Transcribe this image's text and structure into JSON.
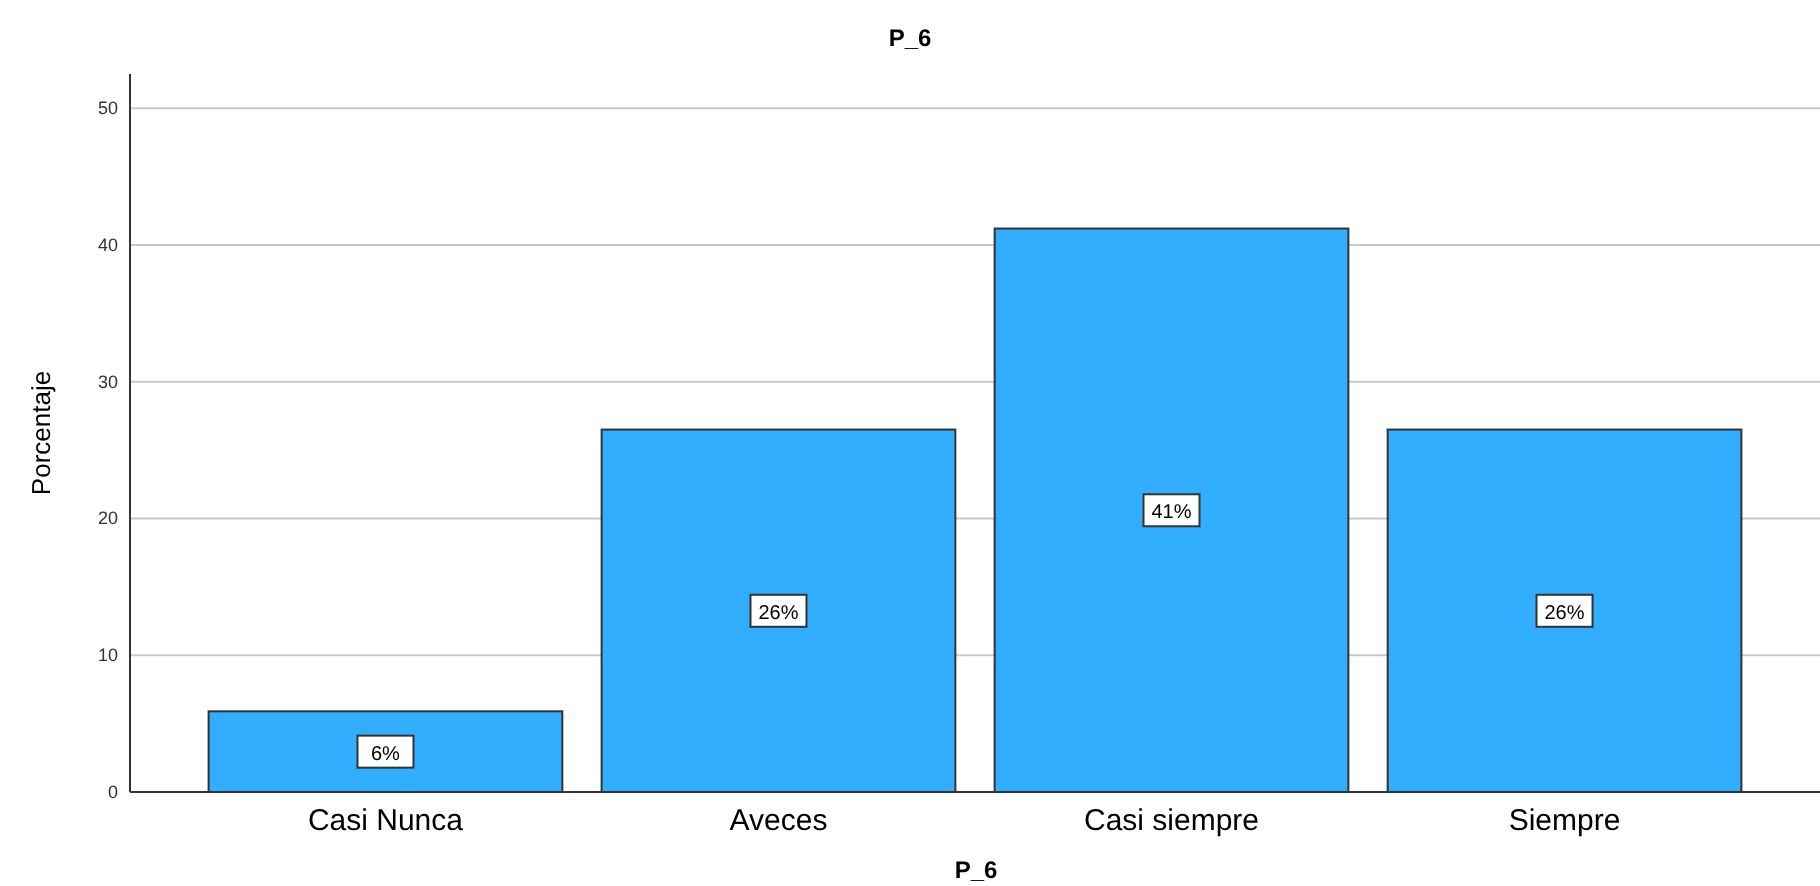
{
  "chart_data": {
    "type": "bar",
    "title": "P_6",
    "xlabel": "P_6",
    "ylabel": "Porcentaje",
    "categories": [
      "Casi Nunca",
      "Aveces",
      "Casi siempre",
      "Siempre"
    ],
    "values": [
      5.9,
      26.5,
      41.2,
      26.5
    ],
    "value_labels": [
      "6%",
      "26%",
      "41%",
      "26%"
    ],
    "color": "#31aefd",
    "ylim": [
      0,
      52.5
    ],
    "yticks": [
      0,
      10,
      20,
      30,
      40,
      50
    ],
    "grid": "y"
  }
}
